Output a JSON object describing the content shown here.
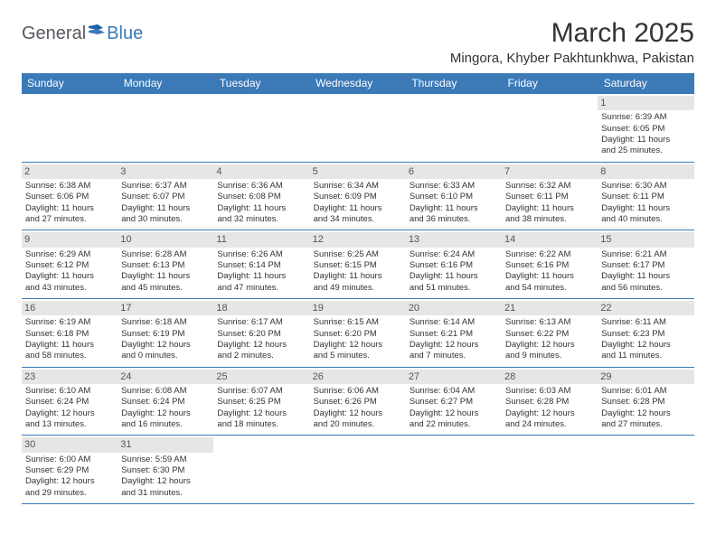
{
  "logo": {
    "part1": "General",
    "part2": "Blue"
  },
  "title": "March 2025",
  "location": "Mingora, Khyber Pakhtunkhwa, Pakistan",
  "weekdays": [
    "Sunday",
    "Monday",
    "Tuesday",
    "Wednesday",
    "Thursday",
    "Friday",
    "Saturday"
  ],
  "colors": {
    "header_bg": "#3b79b7",
    "daynum_bg": "#e6e6e6",
    "border": "#3b79b7"
  },
  "weeks": [
    [
      null,
      null,
      null,
      null,
      null,
      null,
      {
        "n": "1",
        "sr": "Sunrise: 6:39 AM",
        "ss": "Sunset: 6:05 PM",
        "d1": "Daylight: 11 hours",
        "d2": "and 25 minutes."
      }
    ],
    [
      {
        "n": "2",
        "sr": "Sunrise: 6:38 AM",
        "ss": "Sunset: 6:06 PM",
        "d1": "Daylight: 11 hours",
        "d2": "and 27 minutes."
      },
      {
        "n": "3",
        "sr": "Sunrise: 6:37 AM",
        "ss": "Sunset: 6:07 PM",
        "d1": "Daylight: 11 hours",
        "d2": "and 30 minutes."
      },
      {
        "n": "4",
        "sr": "Sunrise: 6:36 AM",
        "ss": "Sunset: 6:08 PM",
        "d1": "Daylight: 11 hours",
        "d2": "and 32 minutes."
      },
      {
        "n": "5",
        "sr": "Sunrise: 6:34 AM",
        "ss": "Sunset: 6:09 PM",
        "d1": "Daylight: 11 hours",
        "d2": "and 34 minutes."
      },
      {
        "n": "6",
        "sr": "Sunrise: 6:33 AM",
        "ss": "Sunset: 6:10 PM",
        "d1": "Daylight: 11 hours",
        "d2": "and 36 minutes."
      },
      {
        "n": "7",
        "sr": "Sunrise: 6:32 AM",
        "ss": "Sunset: 6:11 PM",
        "d1": "Daylight: 11 hours",
        "d2": "and 38 minutes."
      },
      {
        "n": "8",
        "sr": "Sunrise: 6:30 AM",
        "ss": "Sunset: 6:11 PM",
        "d1": "Daylight: 11 hours",
        "d2": "and 40 minutes."
      }
    ],
    [
      {
        "n": "9",
        "sr": "Sunrise: 6:29 AM",
        "ss": "Sunset: 6:12 PM",
        "d1": "Daylight: 11 hours",
        "d2": "and 43 minutes."
      },
      {
        "n": "10",
        "sr": "Sunrise: 6:28 AM",
        "ss": "Sunset: 6:13 PM",
        "d1": "Daylight: 11 hours",
        "d2": "and 45 minutes."
      },
      {
        "n": "11",
        "sr": "Sunrise: 6:26 AM",
        "ss": "Sunset: 6:14 PM",
        "d1": "Daylight: 11 hours",
        "d2": "and 47 minutes."
      },
      {
        "n": "12",
        "sr": "Sunrise: 6:25 AM",
        "ss": "Sunset: 6:15 PM",
        "d1": "Daylight: 11 hours",
        "d2": "and 49 minutes."
      },
      {
        "n": "13",
        "sr": "Sunrise: 6:24 AM",
        "ss": "Sunset: 6:16 PM",
        "d1": "Daylight: 11 hours",
        "d2": "and 51 minutes."
      },
      {
        "n": "14",
        "sr": "Sunrise: 6:22 AM",
        "ss": "Sunset: 6:16 PM",
        "d1": "Daylight: 11 hours",
        "d2": "and 54 minutes."
      },
      {
        "n": "15",
        "sr": "Sunrise: 6:21 AM",
        "ss": "Sunset: 6:17 PM",
        "d1": "Daylight: 11 hours",
        "d2": "and 56 minutes."
      }
    ],
    [
      {
        "n": "16",
        "sr": "Sunrise: 6:19 AM",
        "ss": "Sunset: 6:18 PM",
        "d1": "Daylight: 11 hours",
        "d2": "and 58 minutes."
      },
      {
        "n": "17",
        "sr": "Sunrise: 6:18 AM",
        "ss": "Sunset: 6:19 PM",
        "d1": "Daylight: 12 hours",
        "d2": "and 0 minutes."
      },
      {
        "n": "18",
        "sr": "Sunrise: 6:17 AM",
        "ss": "Sunset: 6:20 PM",
        "d1": "Daylight: 12 hours",
        "d2": "and 2 minutes."
      },
      {
        "n": "19",
        "sr": "Sunrise: 6:15 AM",
        "ss": "Sunset: 6:20 PM",
        "d1": "Daylight: 12 hours",
        "d2": "and 5 minutes."
      },
      {
        "n": "20",
        "sr": "Sunrise: 6:14 AM",
        "ss": "Sunset: 6:21 PM",
        "d1": "Daylight: 12 hours",
        "d2": "and 7 minutes."
      },
      {
        "n": "21",
        "sr": "Sunrise: 6:13 AM",
        "ss": "Sunset: 6:22 PM",
        "d1": "Daylight: 12 hours",
        "d2": "and 9 minutes."
      },
      {
        "n": "22",
        "sr": "Sunrise: 6:11 AM",
        "ss": "Sunset: 6:23 PM",
        "d1": "Daylight: 12 hours",
        "d2": "and 11 minutes."
      }
    ],
    [
      {
        "n": "23",
        "sr": "Sunrise: 6:10 AM",
        "ss": "Sunset: 6:24 PM",
        "d1": "Daylight: 12 hours",
        "d2": "and 13 minutes."
      },
      {
        "n": "24",
        "sr": "Sunrise: 6:08 AM",
        "ss": "Sunset: 6:24 PM",
        "d1": "Daylight: 12 hours",
        "d2": "and 16 minutes."
      },
      {
        "n": "25",
        "sr": "Sunrise: 6:07 AM",
        "ss": "Sunset: 6:25 PM",
        "d1": "Daylight: 12 hours",
        "d2": "and 18 minutes."
      },
      {
        "n": "26",
        "sr": "Sunrise: 6:06 AM",
        "ss": "Sunset: 6:26 PM",
        "d1": "Daylight: 12 hours",
        "d2": "and 20 minutes."
      },
      {
        "n": "27",
        "sr": "Sunrise: 6:04 AM",
        "ss": "Sunset: 6:27 PM",
        "d1": "Daylight: 12 hours",
        "d2": "and 22 minutes."
      },
      {
        "n": "28",
        "sr": "Sunrise: 6:03 AM",
        "ss": "Sunset: 6:28 PM",
        "d1": "Daylight: 12 hours",
        "d2": "and 24 minutes."
      },
      {
        "n": "29",
        "sr": "Sunrise: 6:01 AM",
        "ss": "Sunset: 6:28 PM",
        "d1": "Daylight: 12 hours",
        "d2": "and 27 minutes."
      }
    ],
    [
      {
        "n": "30",
        "sr": "Sunrise: 6:00 AM",
        "ss": "Sunset: 6:29 PM",
        "d1": "Daylight: 12 hours",
        "d2": "and 29 minutes."
      },
      {
        "n": "31",
        "sr": "Sunrise: 5:59 AM",
        "ss": "Sunset: 6:30 PM",
        "d1": "Daylight: 12 hours",
        "d2": "and 31 minutes."
      },
      null,
      null,
      null,
      null,
      null
    ]
  ]
}
